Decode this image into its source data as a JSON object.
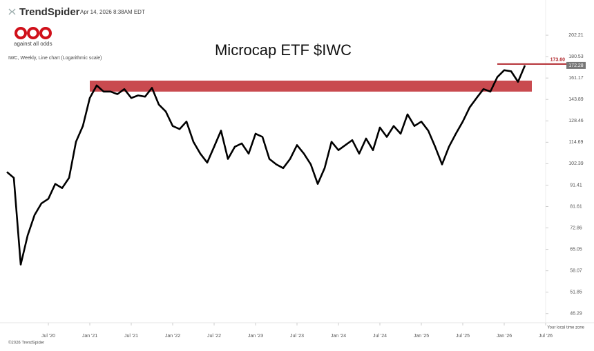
{
  "header": {
    "brand": "TrendSpider",
    "timestamp": "Apr 14, 2026 8:38AM EDT",
    "logo_text": "aao",
    "logo_caption": "against all odds",
    "chart_info": "IWC, Weekly, Line chart (Logarithmic scale)",
    "timezone_note": "Your local time zone",
    "copyright": "©2026 TrendSpider"
  },
  "chart_data": {
    "type": "line",
    "title": "Microcap ETF $IWC",
    "log_scale": true,
    "color": "#000000",
    "x": [
      "2020-01",
      "2020-02",
      "2020-03",
      "2020-04",
      "2020-05",
      "2020-06",
      "2020-07",
      "2020-08",
      "2020-09",
      "2020-10",
      "2020-11",
      "2020-12",
      "2021-01",
      "2021-02",
      "2021-03",
      "2021-04",
      "2021-05",
      "2021-06",
      "2021-07",
      "2021-08",
      "2021-09",
      "2021-10",
      "2021-11",
      "2021-12",
      "2022-01",
      "2022-02",
      "2022-03",
      "2022-04",
      "2022-05",
      "2022-06",
      "2022-07",
      "2022-08",
      "2022-09",
      "2022-10",
      "2022-11",
      "2022-12",
      "2023-01",
      "2023-02",
      "2023-03",
      "2023-04",
      "2023-05",
      "2023-06",
      "2023-07",
      "2023-08",
      "2023-09",
      "2023-10",
      "2023-11",
      "2023-12",
      "2024-01",
      "2024-02",
      "2024-03",
      "2024-04",
      "2024-05",
      "2024-06",
      "2024-07",
      "2024-08",
      "2024-09",
      "2024-10",
      "2024-11",
      "2024-12",
      "2025-01",
      "2025-02",
      "2025-03",
      "2025-04",
      "2025-05",
      "2025-06",
      "2025-07",
      "2025-08",
      "2025-09",
      "2025-10",
      "2025-11",
      "2025-12",
      "2026-01",
      "2026-02",
      "2026-03",
      "2026-04"
    ],
    "values": [
      98,
      95,
      60,
      70,
      78,
      83,
      85,
      92,
      90,
      95,
      115,
      125,
      145,
      155,
      150,
      150,
      148,
      152,
      145,
      147,
      146,
      153,
      140,
      135,
      125,
      123,
      128,
      115,
      108,
      103,
      112,
      122,
      105,
      112,
      114,
      108,
      120,
      118,
      105,
      102,
      100,
      105,
      113,
      108,
      102,
      92,
      100,
      115,
      110,
      113,
      116,
      108,
      117,
      110,
      124,
      118,
      125,
      120,
      133,
      125,
      128,
      122,
      112,
      102,
      112,
      120,
      128,
      138,
      145,
      152,
      150,
      162,
      168,
      167,
      158,
      172.28
    ],
    "xlim": [
      "2020-01",
      "2026-07"
    ],
    "xticks": [
      {
        "value": "2020-07",
        "label": "Jul '20"
      },
      {
        "value": "2021-01",
        "label": "Jan '21"
      },
      {
        "value": "2021-07",
        "label": "Jul '21"
      },
      {
        "value": "2022-01",
        "label": "Jan '22"
      },
      {
        "value": "2022-07",
        "label": "Jul '22"
      },
      {
        "value": "2023-01",
        "label": "Jan '23"
      },
      {
        "value": "2023-07",
        "label": "Jul '23"
      },
      {
        "value": "2024-01",
        "label": "Jan '24"
      },
      {
        "value": "2024-07",
        "label": "Jul '24"
      },
      {
        "value": "2025-01",
        "label": "Jan '25"
      },
      {
        "value": "2025-07",
        "label": "Jul '25"
      },
      {
        "value": "2026-01",
        "label": "Jan '26"
      },
      {
        "value": "2026-07",
        "label": "Jul '26"
      }
    ],
    "ylim": [
      44.1,
      226.5
    ],
    "yticks": [
      202.21,
      180.53,
      161.17,
      143.89,
      128.46,
      114.69,
      102.39,
      91.41,
      81.61,
      72.86,
      65.05,
      58.07,
      51.85,
      46.29
    ],
    "zone": {
      "from": 150,
      "to": 159,
      "start": "2021-01",
      "end": "2026-05",
      "color": "#c94a4f"
    },
    "level": {
      "value": 173.6,
      "label": "173.60",
      "start": "2025-12",
      "color": "#b22a2f"
    }
  }
}
